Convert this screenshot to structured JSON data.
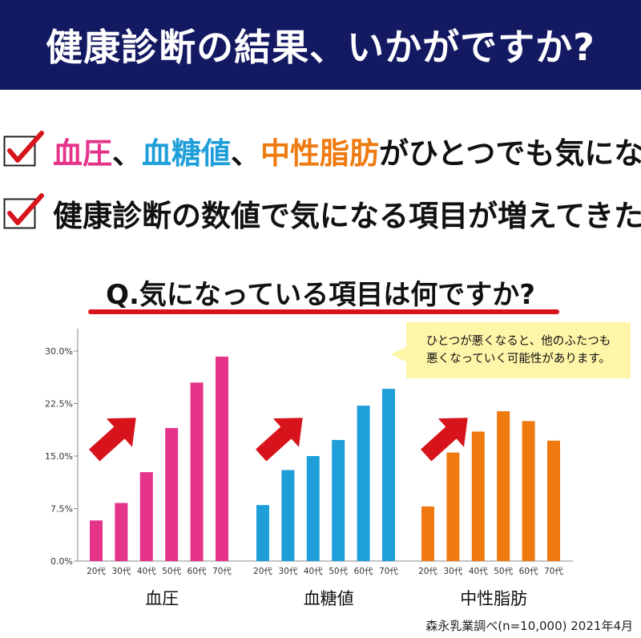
{
  "header": {
    "title": "健康診断の結果、いかがですか?"
  },
  "checks": {
    "line1": {
      "part1": "血圧",
      "sep1": "、",
      "part2": "血糖値",
      "sep2": "、",
      "part3": "中性脂肪",
      "rest": "がひとつでも気になる"
    },
    "line2": "健康診断の数値で気になる項目が増えてきた"
  },
  "question": "Q.気になっている項目は何ですか?",
  "note": {
    "line1": "ひとつが悪くなると、他のふたつも",
    "line2": "悪くなっていく可能性があります。"
  },
  "source": "森永乳業調べ(n=10,000) 2021年4月",
  "colors": {
    "header_bg": "#141a62",
    "pink": "#e5338a",
    "blue": "#1f9fd9",
    "orange": "#ee7a10",
    "arrow": "#d7141b"
  },
  "chart_data": {
    "type": "bar",
    "categories": [
      "20代",
      "30代",
      "40代",
      "50代",
      "60代",
      "70代"
    ],
    "groups": [
      {
        "name": "血圧",
        "color": "#e5338a",
        "values": [
          5.8,
          8.3,
          12.7,
          19.0,
          25.5,
          29.2
        ]
      },
      {
        "name": "血糖値",
        "color": "#1f9fd9",
        "values": [
          8.0,
          13.0,
          15.0,
          17.3,
          22.2,
          24.6
        ]
      },
      {
        "name": "中性脂肪",
        "color": "#ee7a10",
        "values": [
          7.8,
          15.5,
          18.5,
          21.4,
          20.0,
          17.2
        ]
      }
    ],
    "yticks": [
      "0.0%",
      "7.5%",
      "15.0%",
      "22.5%",
      "30.0%"
    ],
    "ylim": [
      0,
      30
    ],
    "grid": false
  }
}
